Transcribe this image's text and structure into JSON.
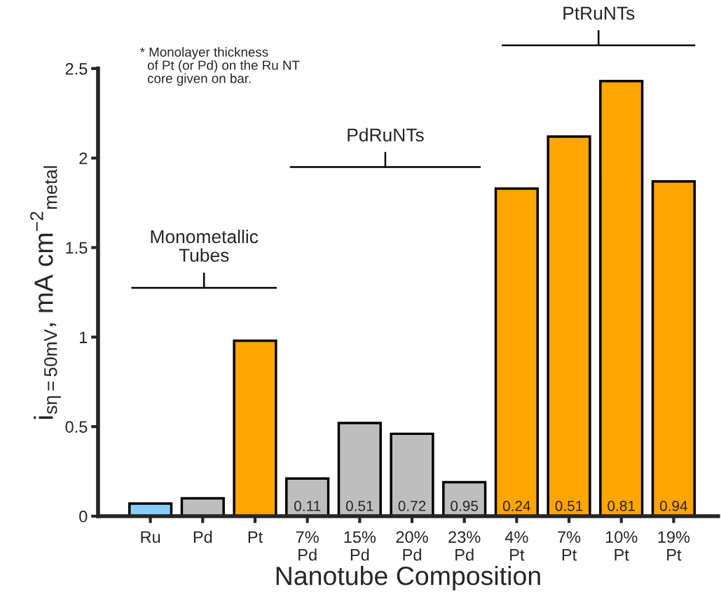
{
  "chart_data": {
    "type": "bar",
    "xlabel": "Nanotube Composition",
    "ylabel": "i$_{sη=50mV}$, mA cm$^{−2}$$_{metal}$",
    "categories": [
      "Ru",
      "Pd",
      "Pt",
      "7%\nPd",
      "15%\nPd",
      "20%\nPd",
      "23%\nPd",
      "4%\nPt",
      "7%\nPt",
      "10%\nPt",
      "19%\nPt"
    ],
    "values": [
      0.07,
      0.1,
      0.98,
      0.21,
      0.52,
      0.46,
      0.19,
      1.83,
      2.12,
      2.43,
      1.87
    ],
    "colors": [
      "#87cefa",
      "#bebebe",
      "#ffa500",
      "#bebebe",
      "#bebebe",
      "#bebebe",
      "#bebebe",
      "#ffa500",
      "#ffa500",
      "#ffa500",
      "#ffa500"
    ],
    "ylim": [
      0,
      2.5
    ],
    "yticks": [
      0,
      0.5,
      1,
      1.5,
      2,
      2.5
    ],
    "annotations": [
      "Monometallic\nTubes",
      "PdRuNTs",
      "PtRuNTs",
      "* Monolayer thickness\n  of Pt (or Pd) on the Ru NT\n  core given on bar.",
      "0.11",
      "0.51",
      "0.72",
      "0.95",
      "0.24",
      "0.51",
      "0.81",
      "0.94"
    ],
    "grid": false,
    "legend": false
  }
}
